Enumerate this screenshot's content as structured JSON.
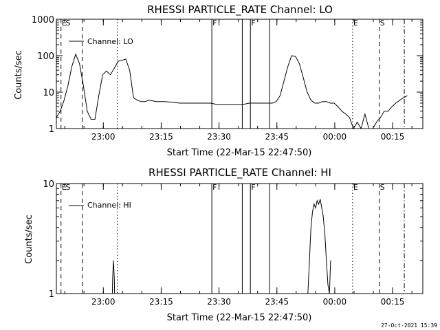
{
  "footer": {
    "date_stamp": "27-Oct-2021 15:39"
  },
  "chart_data": [
    {
      "type": "line",
      "title": "RHESSI PARTICLE_RATE Channel: LO",
      "xlabel": "Start Time (22-Mar-15 22:47:50)",
      "ylabel": "Counts/sec",
      "yscale": "log",
      "xlim_minutes": [
        0,
        95
      ],
      "ylim": [
        1,
        1000
      ],
      "x_ticks": [
        {
          "minute": 12.17,
          "label": "23:00"
        },
        {
          "minute": 27.17,
          "label": "23:15"
        },
        {
          "minute": 42.17,
          "label": "23:30"
        },
        {
          "minute": 57.17,
          "label": "23:45"
        },
        {
          "minute": 72.17,
          "label": "00:00"
        },
        {
          "minute": 87.17,
          "label": "00:15"
        }
      ],
      "y_ticks": [
        {
          "value": 1,
          "label": "1"
        },
        {
          "value": 10,
          "label": "10"
        },
        {
          "value": 100,
          "label": "100"
        },
        {
          "value": 1000,
          "label": "1000"
        }
      ],
      "legend": {
        "entry": "Channel: LO",
        "position": "top-left"
      },
      "event_markers": [
        {
          "minute": 1.2,
          "style": "dashed",
          "label": "E"
        },
        {
          "minute": 2.2,
          "style": "none",
          "label": "S"
        },
        {
          "minute": 6.7,
          "style": "dashed",
          "label": ""
        },
        {
          "minute": 15.8,
          "style": "dotted",
          "label": ""
        },
        {
          "minute": 40.3,
          "style": "solid",
          "label": "F"
        },
        {
          "minute": 48.2,
          "style": "solid",
          "label": ""
        },
        {
          "minute": 50.3,
          "style": "solid",
          "label": "F"
        },
        {
          "minute": 55.3,
          "style": "solid",
          "label": ""
        },
        {
          "minute": 76.8,
          "style": "dotted",
          "label": "E"
        },
        {
          "minute": 83.7,
          "style": "dashed",
          "label": "S"
        },
        {
          "minute": 90.2,
          "style": "dashdot",
          "label": ""
        }
      ],
      "series": [
        {
          "name": "Channel: LO",
          "x": [
            0,
            1,
            2,
            3,
            4,
            5,
            6,
            7,
            8,
            9,
            10,
            11,
            12,
            13,
            14,
            15,
            16,
            17,
            18,
            19,
            20,
            21,
            22,
            23,
            24,
            26,
            28,
            30,
            32,
            34,
            36,
            38,
            40,
            42,
            44,
            46,
            48,
            50,
            52,
            54,
            56,
            57,
            58,
            59,
            60,
            61,
            62,
            63,
            64,
            65,
            66,
            67,
            68,
            69,
            70,
            71,
            72,
            73,
            74,
            75,
            76,
            77,
            78,
            79,
            80,
            81,
            82,
            83,
            84,
            85,
            86,
            87,
            88,
            89,
            90,
            91
          ],
          "y": [
            2,
            3,
            6,
            15,
            50,
            110,
            60,
            15,
            3,
            1.8,
            1.8,
            8,
            30,
            38,
            30,
            45,
            70,
            75,
            80,
            40,
            7,
            6,
            5.5,
            5.5,
            6,
            5.5,
            5.5,
            5.3,
            5,
            5,
            5,
            5,
            5,
            4.5,
            4.5,
            4.5,
            4.5,
            5,
            5,
            5,
            5,
            5.5,
            8,
            20,
            50,
            100,
            95,
            60,
            25,
            10,
            6,
            5,
            5,
            5.5,
            5.5,
            5,
            5,
            4,
            3,
            2.5,
            2,
            1,
            1.5,
            1,
            2.5,
            1,
            1,
            1.5,
            2,
            3,
            3,
            4,
            5,
            6,
            7,
            8
          ]
        }
      ]
    },
    {
      "type": "line",
      "title": "RHESSI PARTICLE_RATE Channel: HI",
      "xlabel": "Start Time (22-Mar-15 22:47:50)",
      "ylabel": "Counts/sec",
      "yscale": "log",
      "xlim_minutes": [
        0,
        95
      ],
      "ylim": [
        1,
        10
      ],
      "x_ticks": [
        {
          "minute": 12.17,
          "label": "23:00"
        },
        {
          "minute": 27.17,
          "label": "23:15"
        },
        {
          "minute": 42.17,
          "label": "23:30"
        },
        {
          "minute": 57.17,
          "label": "23:45"
        },
        {
          "minute": 72.17,
          "label": "00:00"
        },
        {
          "minute": 87.17,
          "label": "00:15"
        }
      ],
      "y_ticks": [
        {
          "value": 1,
          "label": "1"
        },
        {
          "value": 10,
          "label": "10"
        }
      ],
      "legend": {
        "entry": "Channel: HI",
        "position": "top-left"
      },
      "event_markers": [
        {
          "minute": 1.2,
          "style": "dashed",
          "label": "E"
        },
        {
          "minute": 2.2,
          "style": "none",
          "label": "S"
        },
        {
          "minute": 6.7,
          "style": "dashed",
          "label": ""
        },
        {
          "minute": 15.8,
          "style": "dotted",
          "label": ""
        },
        {
          "minute": 40.3,
          "style": "solid",
          "label": "F"
        },
        {
          "minute": 48.2,
          "style": "solid",
          "label": ""
        },
        {
          "minute": 50.3,
          "style": "solid",
          "label": "F"
        },
        {
          "minute": 55.3,
          "style": "solid",
          "label": ""
        },
        {
          "minute": 76.8,
          "style": "dotted",
          "label": "E"
        },
        {
          "minute": 83.7,
          "style": "dashed",
          "label": "S"
        },
        {
          "minute": 90.2,
          "style": "dashdot",
          "label": ""
        }
      ],
      "series": [
        {
          "name": "Channel: HI",
          "x": [
            14.5,
            14.6,
            14.8,
            15.0,
            15.1
          ],
          "y": [
            1,
            1.4,
            2,
            1.4,
            1
          ]
        },
        {
          "name": "Channel: HI",
          "x": [
            65.2,
            65.6,
            66.0,
            66.4,
            66.8,
            67.2,
            67.6,
            68.0,
            68.4,
            68.8,
            69.2,
            69.6,
            70.0,
            70.4,
            70.8,
            71.1
          ],
          "y": [
            1,
            2,
            4,
            5.5,
            6.5,
            6,
            7,
            6.5,
            7.2,
            6,
            5,
            3.5,
            2,
            1.2,
            1,
            2
          ]
        }
      ]
    }
  ]
}
